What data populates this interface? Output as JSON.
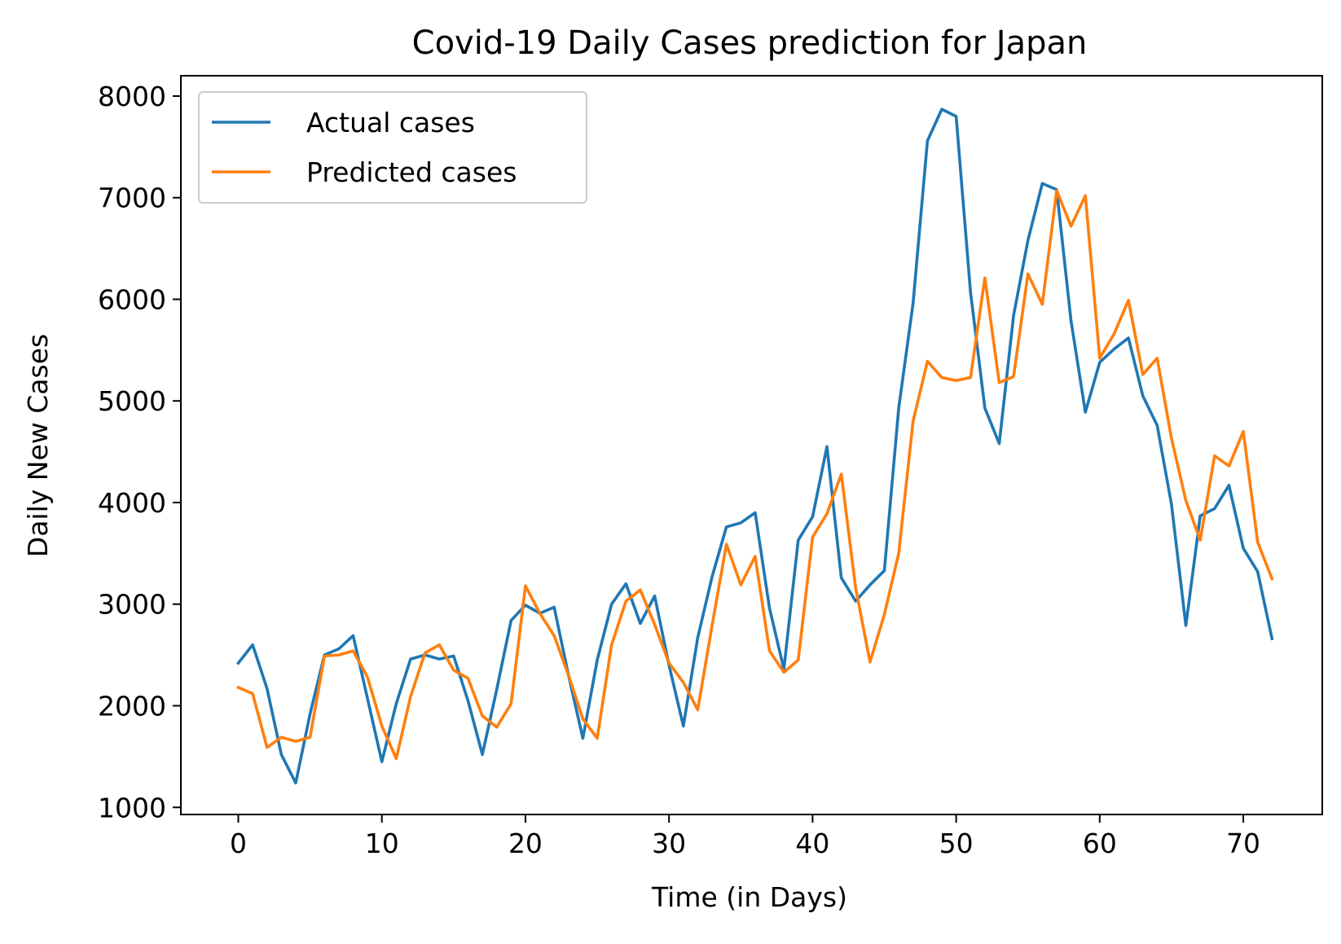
{
  "chart_data": {
    "type": "line",
    "title": "Covid-19 Daily Cases prediction for Japan",
    "xlabel": "Time (in Days)",
    "ylabel": "Daily New Cases",
    "xlim": [
      -4,
      75.5
    ],
    "ylim": [
      930,
      8200
    ],
    "xticks": [
      0,
      10,
      20,
      30,
      40,
      50,
      60,
      70
    ],
    "yticks": [
      1000,
      2000,
      3000,
      4000,
      5000,
      6000,
      7000,
      8000
    ],
    "grid": false,
    "legend_position": "upper left",
    "x": [
      0,
      1,
      2,
      3,
      4,
      5,
      6,
      7,
      8,
      9,
      10,
      11,
      12,
      13,
      14,
      15,
      16,
      17,
      18,
      19,
      20,
      21,
      22,
      23,
      24,
      25,
      26,
      27,
      28,
      29,
      30,
      31,
      32,
      33,
      34,
      35,
      36,
      37,
      38,
      39,
      40,
      41,
      42,
      43,
      44,
      45,
      46,
      47,
      48,
      49,
      50,
      51,
      52,
      53,
      54,
      55,
      56,
      57,
      58,
      59,
      60,
      61,
      62,
      63,
      64,
      65,
      66,
      67,
      68,
      69,
      70,
      71,
      72
    ],
    "series": [
      {
        "name": "Actual cases",
        "color": "#1f77b4",
        "values": [
          2420,
          2600,
          2170,
          1520,
          1240,
          1920,
          2500,
          2560,
          2690,
          2070,
          1450,
          2020,
          2460,
          2500,
          2460,
          2490,
          2050,
          1520,
          2160,
          2840,
          2990,
          2910,
          2970,
          2300,
          1680,
          2450,
          3000,
          3200,
          2810,
          3080,
          2400,
          1800,
          2670,
          3270,
          3760,
          3800,
          3900,
          2960,
          2360,
          3630,
          3860,
          4550,
          3260,
          3030,
          3190,
          3330,
          4930,
          5960,
          7560,
          7870,
          7800,
          6070,
          4930,
          4580,
          5840,
          6580,
          7140,
          7080,
          5790,
          4890,
          5380,
          5510,
          5620,
          5050,
          4760,
          3980,
          2790,
          3870,
          3940,
          4170,
          3550,
          3320,
          2660
        ]
      },
      {
        "name": "Predicted cases",
        "color": "#ff7f0e",
        "values": [
          2180,
          2120,
          1590,
          1690,
          1650,
          1690,
          2490,
          2500,
          2540,
          2280,
          1800,
          1480,
          2090,
          2520,
          2600,
          2350,
          2270,
          1900,
          1790,
          2020,
          3180,
          2910,
          2690,
          2300,
          1870,
          1680,
          2600,
          3030,
          3140,
          2800,
          2420,
          2230,
          1960,
          2790,
          3590,
          3190,
          3470,
          2540,
          2330,
          2450,
          3660,
          3890,
          4280,
          3160,
          2430,
          2900,
          3500,
          4800,
          5390,
          5230,
          5200,
          5230,
          6210,
          5180,
          5240,
          6250,
          5950,
          7070,
          6720,
          7020,
          5420,
          5660,
          5990,
          5260,
          5420,
          4630,
          4020,
          3630,
          4460,
          4360,
          4700,
          3610,
          3250
        ]
      }
    ]
  }
}
